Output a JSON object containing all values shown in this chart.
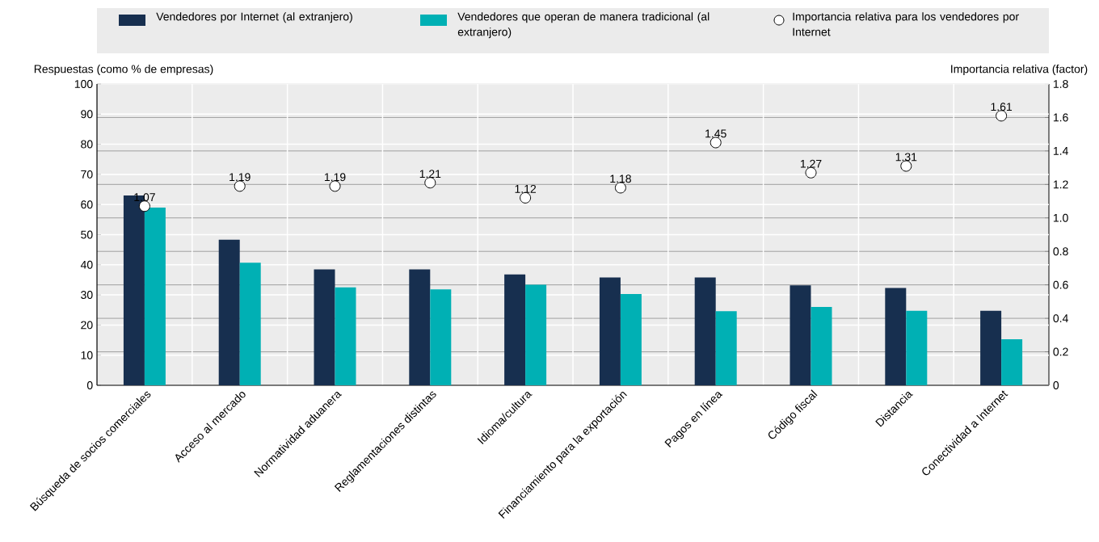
{
  "chart_data": {
    "type": "bar",
    "categories": [
      "Búsqueda de socios comerciales",
      "Acceso al mercado",
      "Normatividad aduanera",
      "Reglamentaciones distintas",
      "Idioma/cultura",
      "Financiamiento para la exportación",
      "Pagos en línea",
      "Código fiscal",
      "Distancia",
      "Conectividad a Internet"
    ],
    "series": [
      {
        "name": "Vendedores por Internet (al extranjero)",
        "color": "#172f4f",
        "values": [
          63,
          48.3,
          38.5,
          38.5,
          36.8,
          35.8,
          35.8,
          33.2,
          32.3,
          24.7
        ]
      },
      {
        "name": "Vendedores que operan de manera tradicional (al extranjero)",
        "color": "#00b0b4",
        "values": [
          59,
          40.7,
          32.5,
          31.8,
          33.4,
          30.3,
          24.6,
          26,
          24.7,
          15.3
        ]
      },
      {
        "name": "Importancia relativa para los vendedores por Internet",
        "type": "scatter",
        "axis": "y2",
        "marker": "circle",
        "color": "#ffffff",
        "data_labels": true,
        "values": [
          1.07,
          1.19,
          1.19,
          1.21,
          1.12,
          1.18,
          1.45,
          1.27,
          1.31,
          1.61
        ]
      }
    ],
    "ylabel": "Respuestas (como % de empresas)",
    "y2label": "Importancia relativa (factor)",
    "ylim": [
      0,
      100
    ],
    "yticks": [
      0,
      10,
      20,
      30,
      40,
      50,
      60,
      70,
      80,
      90,
      100
    ],
    "y2lim": [
      0,
      1.8
    ],
    "y2ticks": [
      0,
      0.2,
      0.4,
      0.6,
      0.8,
      {
        "value": 1,
        "label": "1.0"
      },
      1.2,
      1.4,
      1.6,
      1.8
    ],
    "grid": true,
    "legend": "top"
  }
}
